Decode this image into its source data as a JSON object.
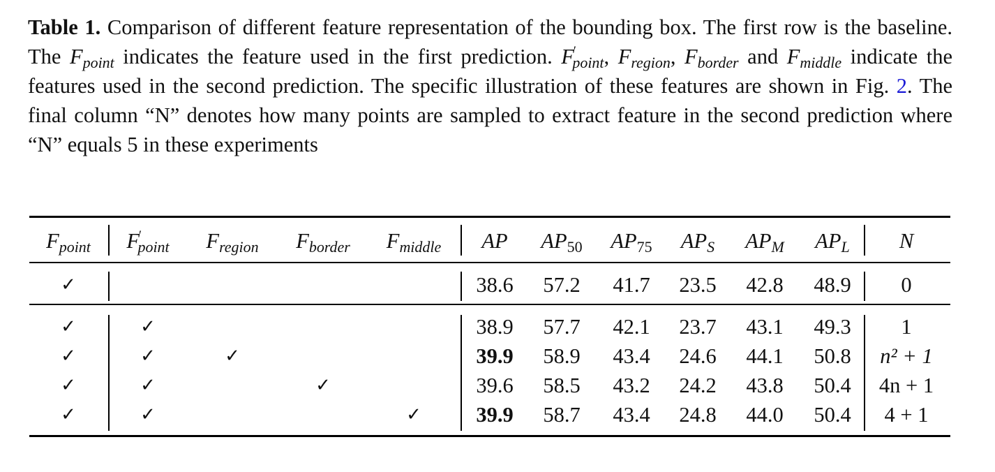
{
  "caption": {
    "label": "Table 1.",
    "line1": " Comparison of different feature representation of the bounding box. The first row is the baseline. The ",
    "f_point": "F",
    "f_point_sub": "point",
    "line2": " indicates the feature used in the first prediction. ",
    "f_point2": "F",
    "f_point2_prime": "′",
    "f_point2_sub": "point",
    "comma1": ",",
    "f_region": "F",
    "f_region_sub": "region",
    "comma2": ", ",
    "f_border": "F",
    "f_border_sub": "border",
    "and": " and ",
    "f_middle": "F",
    "f_middle_sub": "middle",
    "line3": " indicate the features used in the second prediction. The specific illustration of these features are shown in Fig. ",
    "fig_ref": "2",
    "line4": ". The final column “N” denotes how many points are sampled to extract feature in the second prediction where “N” equals 5 in these experiments"
  },
  "table": {
    "headers": {
      "fpoint": {
        "base": "F",
        "sub": "point"
      },
      "fpoint_prime": {
        "base": "F",
        "prime": "′",
        "sub": "point"
      },
      "fregion": {
        "base": "F",
        "sub": "region"
      },
      "fborder": {
        "base": "F",
        "sub": "border"
      },
      "fmiddle": {
        "base": "F",
        "sub": "middle"
      },
      "ap": {
        "base": "AP",
        "sub": ""
      },
      "ap50": {
        "base": "AP",
        "sub": "50"
      },
      "ap75": {
        "base": "AP",
        "sub": "75"
      },
      "aps": {
        "base": "AP",
        "sub": "S"
      },
      "apm": {
        "base": "AP",
        "sub": "M"
      },
      "apl": {
        "base": "AP",
        "sub": "L"
      },
      "n": {
        "base": "N"
      }
    },
    "check": "✓",
    "baseline": {
      "fpoint": "✓",
      "ap": "38.6",
      "ap50": "57.2",
      "ap75": "41.7",
      "aps": "23.5",
      "apm": "42.8",
      "apl": "48.9",
      "n": "0"
    },
    "rows": [
      {
        "fpoint": "✓",
        "fpoint_prime": "✓",
        "fregion": "",
        "fborder": "",
        "fmiddle": "",
        "ap": "38.9",
        "ap_bold": false,
        "ap50": "57.7",
        "ap75": "42.1",
        "aps": "23.7",
        "apm": "43.1",
        "apl": "49.3",
        "n": "1"
      },
      {
        "fpoint": "✓",
        "fpoint_prime": "✓",
        "fregion": "✓",
        "fborder": "",
        "fmiddle": "",
        "ap": "39.9",
        "ap_bold": true,
        "ap50": "58.9",
        "ap75": "43.4",
        "aps": "24.6",
        "apm": "44.1",
        "apl": "50.8",
        "n": "n² + 1"
      },
      {
        "fpoint": "✓",
        "fpoint_prime": "✓",
        "fregion": "",
        "fborder": "✓",
        "fmiddle": "",
        "ap": "39.6",
        "ap_bold": false,
        "ap50": "58.5",
        "ap75": "43.2",
        "aps": "24.2",
        "apm": "43.8",
        "apl": "50.4",
        "n": "4n + 1"
      },
      {
        "fpoint": "✓",
        "fpoint_prime": "✓",
        "fregion": "",
        "fborder": "",
        "fmiddle": "✓",
        "ap": "39.9",
        "ap_bold": true,
        "ap50": "58.7",
        "ap75": "43.4",
        "aps": "24.8",
        "apm": "44.0",
        "apl": "50.4",
        "n": "4 + 1"
      }
    ]
  }
}
